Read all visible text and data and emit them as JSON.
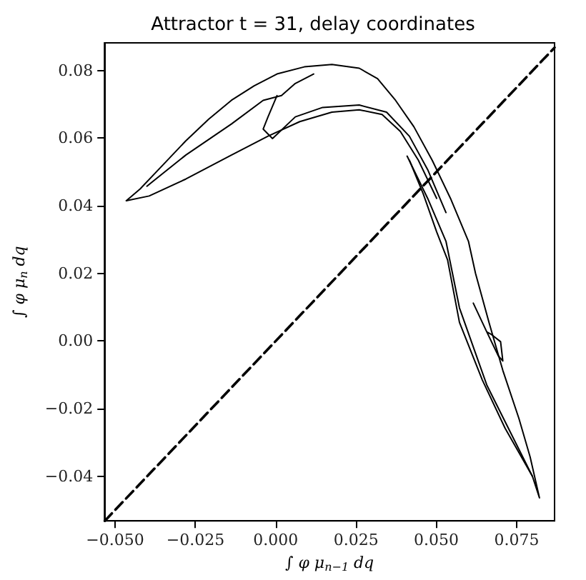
{
  "chart_data": {
    "type": "line",
    "title": "Attractor t = 31, delay coordinates",
    "xlabel": "∫ φ μ$_{n−1}$ dq",
    "ylabel": "∫ φ μ$_{n}$ dq",
    "xlim": [
      -0.0533,
      0.0868
    ],
    "ylim": [
      -0.0532,
      0.0882
    ],
    "xticks": [
      {
        "value": -0.05,
        "label": "−0.050"
      },
      {
        "value": -0.025,
        "label": "−0.025"
      },
      {
        "value": 0,
        "label": "0.000"
      },
      {
        "value": 0.025,
        "label": "0.025"
      },
      {
        "value": 0.05,
        "label": "0.050"
      },
      {
        "value": 0.075,
        "label": "0.075"
      }
    ],
    "yticks": [
      {
        "value": -0.04,
        "label": "−0.04"
      },
      {
        "value": -0.02,
        "label": "−0.02"
      },
      {
        "value": 0,
        "label": "0.00"
      },
      {
        "value": 0.02,
        "label": "0.02"
      },
      {
        "value": 0.04,
        "label": "0.04"
      },
      {
        "value": 0.06,
        "label": "0.06"
      },
      {
        "value": 0.08,
        "label": "0.08"
      }
    ],
    "grid": false,
    "marker": "none",
    "line_style": "solid",
    "series": [
      {
        "color": "#000000",
        "x": [
          -0.0465,
          -0.0422,
          -0.0351,
          -0.028,
          -0.0209,
          -0.0138,
          -0.0067,
          0.0004,
          0.0089,
          0.0175,
          0.026,
          0.0317,
          0.0373,
          0.043,
          0.0487,
          0.0544,
          0.06,
          0.0622,
          0.0664,
          0.0707,
          0.0757,
          0.0792,
          0.0821,
          0.0799,
          0.0714,
          0.0643,
          0.0572,
          0.0535,
          0.0501,
          0.0459,
          0.0416
        ],
        "values": [
          0.0415,
          0.045,
          0.0521,
          0.0592,
          0.0656,
          0.0712,
          0.0755,
          0.079,
          0.0811,
          0.0818,
          0.0807,
          0.0776,
          0.0712,
          0.0634,
          0.0535,
          0.0422,
          0.0295,
          0.02,
          0.0055,
          -0.0087,
          -0.0229,
          -0.0343,
          -0.0464,
          -0.04,
          -0.0258,
          -0.0115,
          0.0055,
          0.024,
          0.0323,
          0.0436,
          0.0535
        ]
      },
      {
        "color": "#000000",
        "x": [
          -0.0465,
          -0.0394,
          -0.028,
          -0.0138,
          -0.0024,
          0.0075,
          0.0175,
          0.026,
          0.0331,
          0.0388,
          0.0444,
          0.0501
        ],
        "values": [
          0.0415,
          0.0429,
          0.0479,
          0.055,
          0.0606,
          0.0649,
          0.0677,
          0.0684,
          0.067,
          0.062,
          0.0535,
          0.0422
        ]
      },
      {
        "color": "#000000",
        "x": [
          -0.0401,
          -0.028,
          -0.0138,
          -0.0039,
          0.0018,
          0.0061,
          0.0118
        ],
        "values": [
          0.0458,
          0.055,
          0.0642,
          0.0712,
          0.0726,
          0.0762,
          0.079
        ]
      },
      {
        "color": "#000000",
        "x": [
          0.0004,
          -0.0024,
          -0.0039,
          -0.001,
          0.0061,
          0.0146,
          0.026,
          0.0345,
          0.0416,
          0.0473,
          0.053
        ],
        "values": [
          0.0726,
          0.0663,
          0.0627,
          0.0599,
          0.0663,
          0.0691,
          0.0698,
          0.0677,
          0.0606,
          0.0507,
          0.038
        ]
      },
      {
        "color": "#000000",
        "x": [
          0.0409,
          0.0473,
          0.053,
          0.0572,
          0.0657,
          0.0799
        ],
        "values": [
          0.0547,
          0.0422,
          0.0295,
          0.0098,
          -0.013,
          -0.04
        ]
      },
      {
        "color": "#000000",
        "x": [
          0.0615,
          0.0657,
          0.0693,
          0.0707,
          0.07,
          0.0672,
          0.0657
        ],
        "values": [
          0.0112,
          0.0027,
          -0.0044,
          -0.0059,
          -0.0002,
          0.0019,
          0.0027
        ]
      },
      {
        "color": "#000000",
        "line_style": "dashed",
        "x": [
          -0.0532,
          0.0868
        ],
        "values": [
          -0.0532,
          0.0868
        ]
      }
    ]
  }
}
